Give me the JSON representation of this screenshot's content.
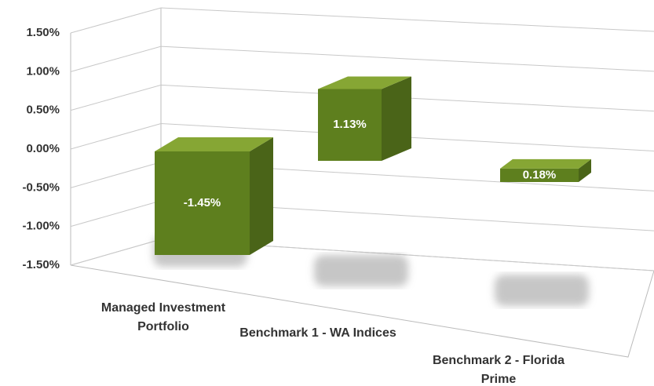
{
  "chart_data": {
    "type": "bar3d",
    "categories": [
      "Managed Investment Portfolio",
      "Benchmark 1 - WA Indices",
      "Benchmark 2 - Florida Prime"
    ],
    "values": [
      -1.45,
      1.13,
      0.18
    ],
    "value_labels": [
      "-1.45%",
      "1.13%",
      "0.18%"
    ],
    "color": "#5e7f1e",
    "ylim": [
      -1.5,
      1.5
    ],
    "yticks": [
      {
        "value": 1.5,
        "label": "1.50%"
      },
      {
        "value": 1,
        "label": "1.00%"
      },
      {
        "value": 0.5,
        "label": "0.50%"
      },
      {
        "value": 0,
        "label": "0.00%"
      },
      {
        "value": -0.5,
        "label": "-0.50%"
      },
      {
        "value": -1,
        "label": "-1.00%"
      },
      {
        "value": -1.5,
        "label": "-1.50%"
      }
    ],
    "grid": true
  }
}
